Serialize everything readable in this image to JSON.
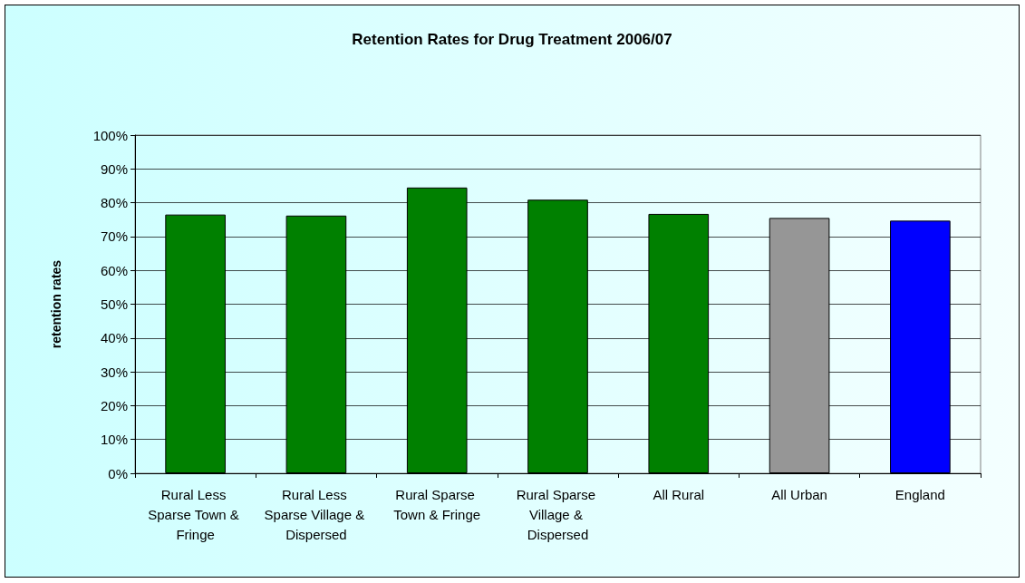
{
  "chart_data": {
    "type": "bar",
    "title": "Retention Rates for Drug Treatment 2006/07",
    "ylabel": "retention rates",
    "categories": [
      "Rural Less Sparse Town & Fringe",
      "Rural Less Sparse Village & Dispersed",
      "Rural Sparse Town & Fringe",
      "Rural Sparse Village & Dispersed",
      "All Rural",
      "All Urban",
      "England"
    ],
    "values": [
      76.5,
      76.2,
      84.5,
      80.9,
      76.7,
      75.5,
      74.7
    ],
    "colors": [
      "#008000",
      "#008000",
      "#008000",
      "#008000",
      "#008000",
      "#969696",
      "#0000ff"
    ],
    "ylim": [
      0,
      100
    ],
    "yticks": [
      {
        "value": 0,
        "label": "0%"
      },
      {
        "value": 10,
        "label": "10%"
      },
      {
        "value": 20,
        "label": "20%"
      },
      {
        "value": 30,
        "label": "30%"
      },
      {
        "value": 40,
        "label": "40%"
      },
      {
        "value": 50,
        "label": "50%"
      },
      {
        "value": 60,
        "label": "60%"
      },
      {
        "value": 70,
        "label": "70%"
      },
      {
        "value": 80,
        "label": "80%"
      },
      {
        "value": 90,
        "label": "90%"
      },
      {
        "value": 100,
        "label": "100%"
      }
    ],
    "grid": "y"
  }
}
